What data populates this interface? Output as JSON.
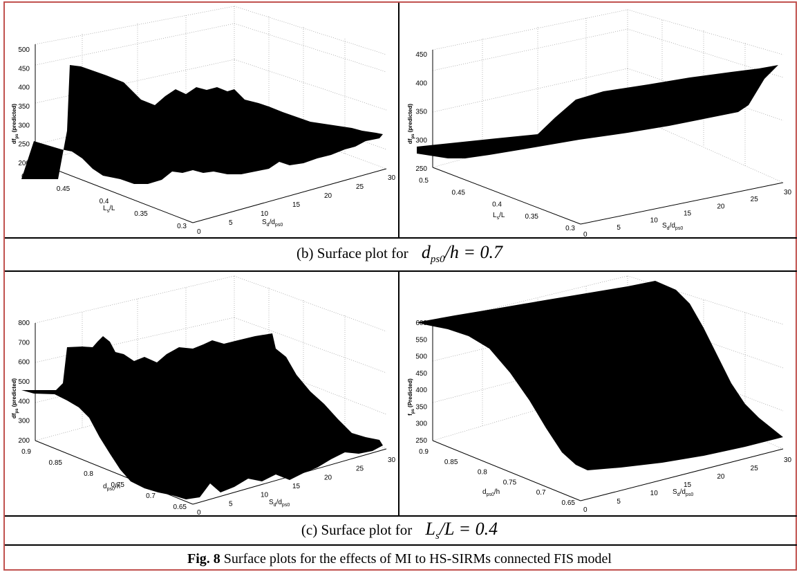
{
  "figure": {
    "caption_label": "Fig. 8",
    "caption_text": " Surface plots for the effects of MI to HS-SIRMs connected FIS model"
  },
  "rows": [
    {
      "caption_prefix": "(b)  Surface plot for",
      "math_main": "d",
      "math_sub": "ps0",
      "math_rest": "/h = 0.7"
    },
    {
      "caption_prefix": "(c)  Surface plot for",
      "math_main": "L",
      "math_sub": "s",
      "math_rest": "/L = 0.4"
    }
  ],
  "plots": [
    {
      "id": "b-left",
      "zlabel": "df",
      "zlabel_sub": "ps",
      "zlabel_rest": " (predicted)",
      "z_ticks": [
        "500",
        "450",
        "400",
        "350",
        "300",
        "250",
        "200"
      ],
      "y_label": "L",
      "y_label_sub": "s",
      "y_label_rest": "/L",
      "y_ticks": [
        "0.5",
        "0.45",
        "0.4",
        "0.35",
        "0.3"
      ],
      "x_label": "S",
      "x_label_sub": "d",
      "x_label_rest": "/d",
      "x_label_sub2": "ps0",
      "x_ticks": [
        "0",
        "5",
        "10",
        "15",
        "20",
        "25",
        "30"
      ]
    },
    {
      "id": "b-right",
      "zlabel": "df",
      "zlabel_sub": "ps",
      "zlabel_rest": " (predicted)",
      "z_ticks": [
        "450",
        "400",
        "350",
        "300",
        "250"
      ],
      "y_label": "L",
      "y_label_sub": "s",
      "y_label_rest": "/L",
      "y_ticks": [
        "0.5",
        "0.45",
        "0.4",
        "0.35",
        "0.3"
      ],
      "x_label": "S",
      "x_label_sub": "d",
      "x_label_rest": "/d",
      "x_label_sub2": "ps0",
      "x_ticks": [
        "0",
        "5",
        "10",
        "15",
        "20",
        "25",
        "30"
      ]
    },
    {
      "id": "c-left",
      "zlabel": "df",
      "zlabel_sub": "ps",
      "zlabel_rest": " (predicted)",
      "z_ticks": [
        "800",
        "700",
        "600",
        "500",
        "400",
        "300",
        "200"
      ],
      "y_label": "d",
      "y_label_sub": "ps0",
      "y_label_rest": "/h",
      "y_ticks": [
        "0.9",
        "0.85",
        "0.8",
        "0.75",
        "0.7",
        "0.65"
      ],
      "x_label": "S",
      "x_label_sub": "d",
      "x_label_rest": "/d",
      "x_label_sub2": "ps0",
      "x_ticks": [
        "0",
        "5",
        "10",
        "15",
        "20",
        "25",
        "30"
      ]
    },
    {
      "id": "c-right",
      "zlabel": "f",
      "zlabel_sub": "ps",
      "zlabel_rest": " (Predicted)",
      "z_ticks": [
        "600",
        "550",
        "500",
        "450",
        "400",
        "350",
        "300",
        "250"
      ],
      "y_label": "d",
      "y_label_sub": "ps0",
      "y_label_rest": "/h",
      "y_ticks": [
        "0.9",
        "0.85",
        "0.8",
        "0.75",
        "0.7",
        "0.65"
      ],
      "x_label": "S",
      "x_label_sub": "d",
      "x_label_rest": "/d",
      "x_label_sub2": "ps0",
      "x_ticks": [
        "0",
        "5",
        "10",
        "15",
        "20",
        "25",
        "30"
      ]
    }
  ]
}
